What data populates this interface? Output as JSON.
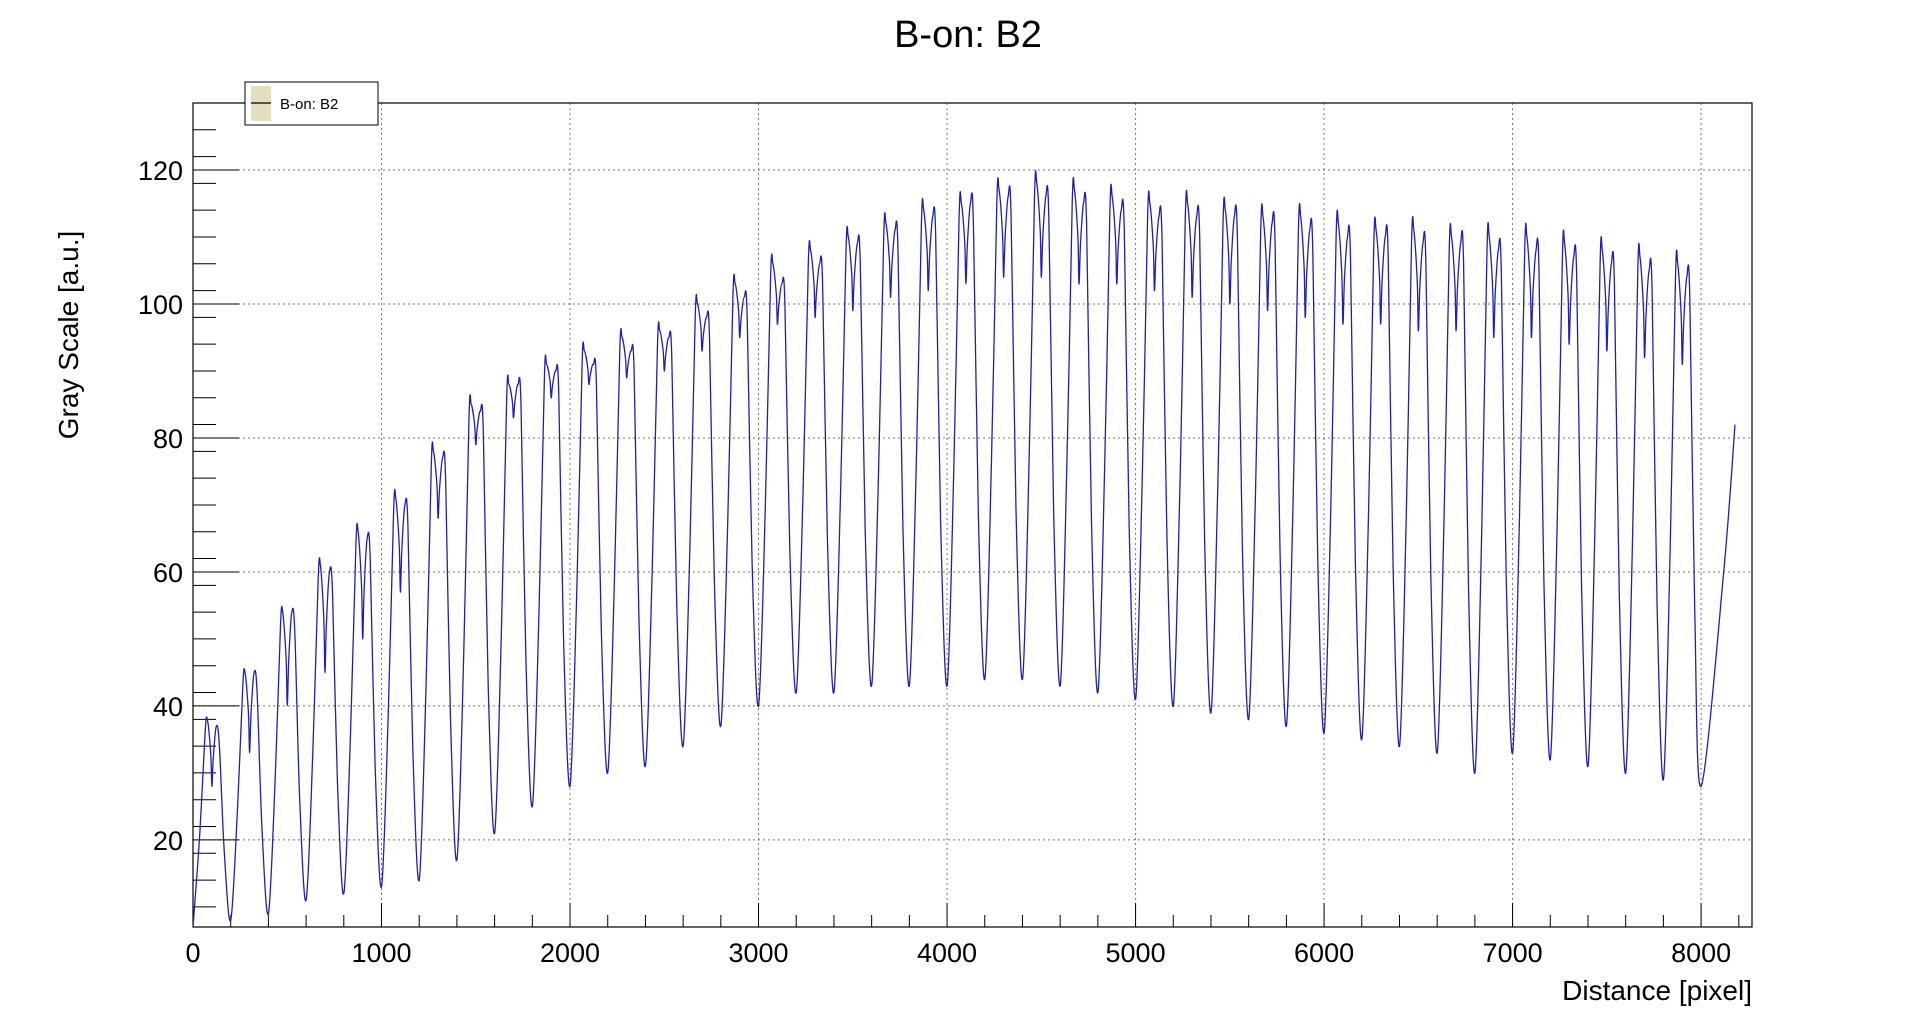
{
  "chart_data": {
    "type": "line",
    "title": "B-on: B2",
    "xlabel": "Distance [pixel]",
    "ylabel": "Gray Scale [a.u.]",
    "xlim": [
      0,
      8270
    ],
    "ylim": [
      7,
      130
    ],
    "x_ticks": [
      0,
      1000,
      2000,
      3000,
      4000,
      5000,
      6000,
      7000,
      8000
    ],
    "x_tick_labels": [
      "0",
      "1000",
      "2000",
      "3000",
      "4000",
      "5000",
      "6000",
      "7000",
      "8000"
    ],
    "y_ticks": [
      20,
      40,
      60,
      80,
      100,
      120
    ],
    "y_tick_labels": [
      "20",
      "40",
      "60",
      "80",
      "100",
      "120"
    ],
    "grid": true,
    "legend": {
      "position": "top-left",
      "entries": [
        "B-on: B2"
      ]
    },
    "line_color": "#1f1fb3",
    "legend_swatch_color": "#e3dfbf",
    "period_pixels": 200,
    "start": {
      "x": 0,
      "y": 7
    },
    "end": {
      "x": 8180,
      "y": 82
    },
    "series": [
      {
        "name": "B-on: B2",
        "description": "Periodic double-peaked profile; each period has a trough then two peaks separated by a dip",
        "peaks": [
          {
            "x": 100,
            "peak1": 38,
            "dip": 28,
            "peak2": 37,
            "trough_after": 8
          },
          {
            "x": 300,
            "peak1": 45,
            "dip": 33,
            "peak2": 45,
            "trough_after": 9
          },
          {
            "x": 500,
            "peak1": 54,
            "dip": 40,
            "peak2": 54,
            "trough_after": 11
          },
          {
            "x": 700,
            "peak1": 61,
            "dip": 45,
            "peak2": 60,
            "trough_after": 12
          },
          {
            "x": 900,
            "peak1": 66,
            "dip": 50,
            "peak2": 65,
            "trough_after": 13
          },
          {
            "x": 1100,
            "peak1": 71,
            "dip": 57,
            "peak2": 70,
            "trough_after": 14
          },
          {
            "x": 1300,
            "peak1": 78,
            "dip": 68,
            "peak2": 77,
            "trough_after": 17
          },
          {
            "x": 1500,
            "peak1": 85,
            "dip": 79,
            "peak2": 84,
            "trough_after": 21
          },
          {
            "x": 1700,
            "peak1": 88,
            "dip": 83,
            "peak2": 88,
            "trough_after": 25
          },
          {
            "x": 1900,
            "peak1": 91,
            "dip": 86,
            "peak2": 90,
            "trough_after": 28
          },
          {
            "x": 2100,
            "peak1": 93,
            "dip": 88,
            "peak2": 91,
            "trough_after": 30
          },
          {
            "x": 2300,
            "peak1": 95,
            "dip": 89,
            "peak2": 93,
            "trough_after": 31
          },
          {
            "x": 2500,
            "peak1": 96,
            "dip": 90,
            "peak2": 95,
            "trough_after": 34
          },
          {
            "x": 2700,
            "peak1": 100,
            "dip": 93,
            "peak2": 98,
            "trough_after": 37
          },
          {
            "x": 2900,
            "peak1": 103,
            "dip": 95,
            "peak2": 101,
            "trough_after": 40
          },
          {
            "x": 3100,
            "peak1": 106,
            "dip": 97,
            "peak2": 103,
            "trough_after": 42
          },
          {
            "x": 3300,
            "peak1": 108,
            "dip": 98,
            "peak2": 106,
            "trough_after": 42
          },
          {
            "x": 3500,
            "peak1": 110,
            "dip": 99,
            "peak2": 109,
            "trough_after": 43
          },
          {
            "x": 3700,
            "peak1": 112,
            "dip": 101,
            "peak2": 111,
            "trough_after": 43
          },
          {
            "x": 3900,
            "peak1": 114,
            "dip": 102,
            "peak2": 113,
            "trough_after": 43
          },
          {
            "x": 4100,
            "peak1": 115,
            "dip": 103,
            "peak2": 115,
            "trough_after": 44
          },
          {
            "x": 4300,
            "peak1": 117,
            "dip": 104,
            "peak2": 116,
            "trough_after": 44
          },
          {
            "x": 4500,
            "peak1": 118,
            "dip": 104,
            "peak2": 116,
            "trough_after": 43
          },
          {
            "x": 4700,
            "peak1": 117,
            "dip": 103,
            "peak2": 115,
            "trough_after": 42
          },
          {
            "x": 4900,
            "peak1": 116,
            "dip": 103,
            "peak2": 114,
            "trough_after": 41
          },
          {
            "x": 5100,
            "peak1": 115,
            "dip": 102,
            "peak2": 113,
            "trough_after": 40
          },
          {
            "x": 5300,
            "peak1": 115,
            "dip": 101,
            "peak2": 113,
            "trough_after": 39
          },
          {
            "x": 5500,
            "peak1": 114,
            "dip": 100,
            "peak2": 113,
            "trough_after": 38
          },
          {
            "x": 5700,
            "peak1": 113,
            "dip": 99,
            "peak2": 112,
            "trough_after": 37
          },
          {
            "x": 5900,
            "peak1": 113,
            "dip": 98,
            "peak2": 111,
            "trough_after": 36
          },
          {
            "x": 6100,
            "peak1": 112,
            "dip": 97,
            "peak2": 110,
            "trough_after": 35
          },
          {
            "x": 6300,
            "peak1": 111,
            "dip": 97,
            "peak2": 110,
            "trough_after": 34
          },
          {
            "x": 6500,
            "peak1": 111,
            "dip": 96,
            "peak2": 109,
            "trough_after": 33
          },
          {
            "x": 6700,
            "peak1": 110,
            "dip": 96,
            "peak2": 109,
            "trough_after": 30
          },
          {
            "x": 6900,
            "peak1": 110,
            "dip": 95,
            "peak2": 108,
            "trough_after": 33
          },
          {
            "x": 7100,
            "peak1": 110,
            "dip": 95,
            "peak2": 108,
            "trough_after": 32
          },
          {
            "x": 7300,
            "peak1": 109,
            "dip": 94,
            "peak2": 107,
            "trough_after": 31
          },
          {
            "x": 7500,
            "peak1": 108,
            "dip": 93,
            "peak2": 106,
            "trough_after": 30
          },
          {
            "x": 7700,
            "peak1": 107,
            "dip": 92,
            "peak2": 105,
            "trough_after": 29
          },
          {
            "x": 7900,
            "peak1": 106,
            "dip": 91,
            "peak2": 104,
            "trough_after": 28
          }
        ]
      }
    ]
  }
}
